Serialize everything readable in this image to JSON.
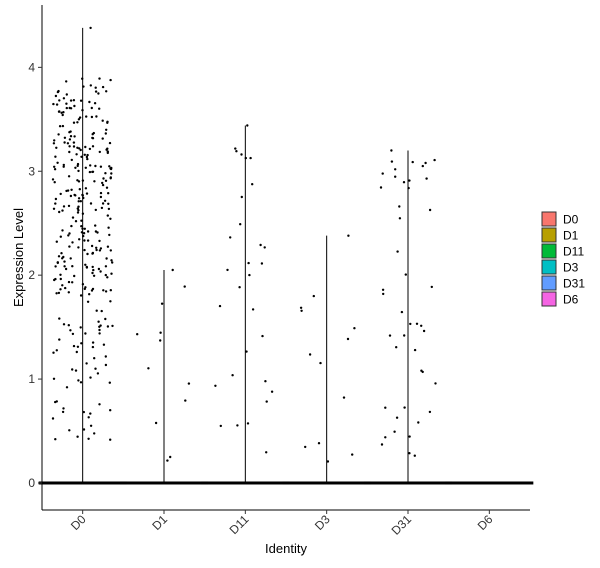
{
  "chart_data": {
    "type": "violin",
    "xlabel": "Identity",
    "ylabel": "Expression Level",
    "categories": [
      "D0",
      "D1",
      "D11",
      "D3",
      "D31",
      "D6"
    ],
    "yticks": [
      0,
      1,
      2,
      3,
      4
    ],
    "ylim": [
      -0.26,
      4.6
    ],
    "grid": false,
    "legend": {
      "position": "right",
      "entries": [
        {
          "label": "D0",
          "color": "#F8766D"
        },
        {
          "label": "D1",
          "color": "#B79F00"
        },
        {
          "label": "D11",
          "color": "#00BA38"
        },
        {
          "label": "D3",
          "color": "#00BFC4"
        },
        {
          "label": "D31",
          "color": "#619CFF"
        },
        {
          "label": "D6",
          "color": "#F564E3"
        }
      ]
    },
    "series": [
      {
        "group": "D0",
        "max": 4.38,
        "nonzero_points": 320
      },
      {
        "group": "D1",
        "max": 2.05,
        "nonzero_points": 12
      },
      {
        "group": "D11",
        "max": 3.44,
        "nonzero_points": 30
      },
      {
        "group": "D3",
        "max": 2.38,
        "nonzero_points": 13
      },
      {
        "group": "D31",
        "max": 3.2,
        "nonzero_points": 45
      },
      {
        "group": "D6",
        "max": 0.0,
        "nonzero_points": 0
      }
    ]
  }
}
